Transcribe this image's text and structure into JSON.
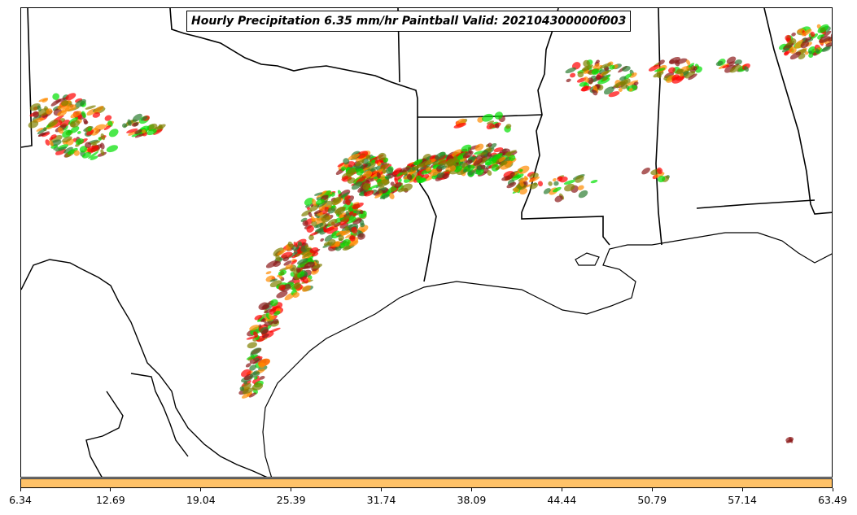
{
  "title": "Hourly Precipitation 6.35 mm/hr Paintball Valid: 202104300000f003",
  "colors": {
    "colorbar": "#ffc268",
    "members": [
      "#00e000",
      "#ff0000",
      "#ff8c00",
      "#8b1a1a",
      "#808000",
      "#2e7d32"
    ]
  },
  "colorbar_ticks": [
    "6.34",
    "12.69",
    "19.04",
    "25.39",
    "31.74",
    "38.09",
    "44.44",
    "50.79",
    "57.14",
    "63.49"
  ],
  "map": {
    "region": "Texas / Louisiana / Gulf Coast",
    "features": [
      "state-borders",
      "coastline",
      "country-border",
      "precipitation-paintball"
    ]
  }
}
